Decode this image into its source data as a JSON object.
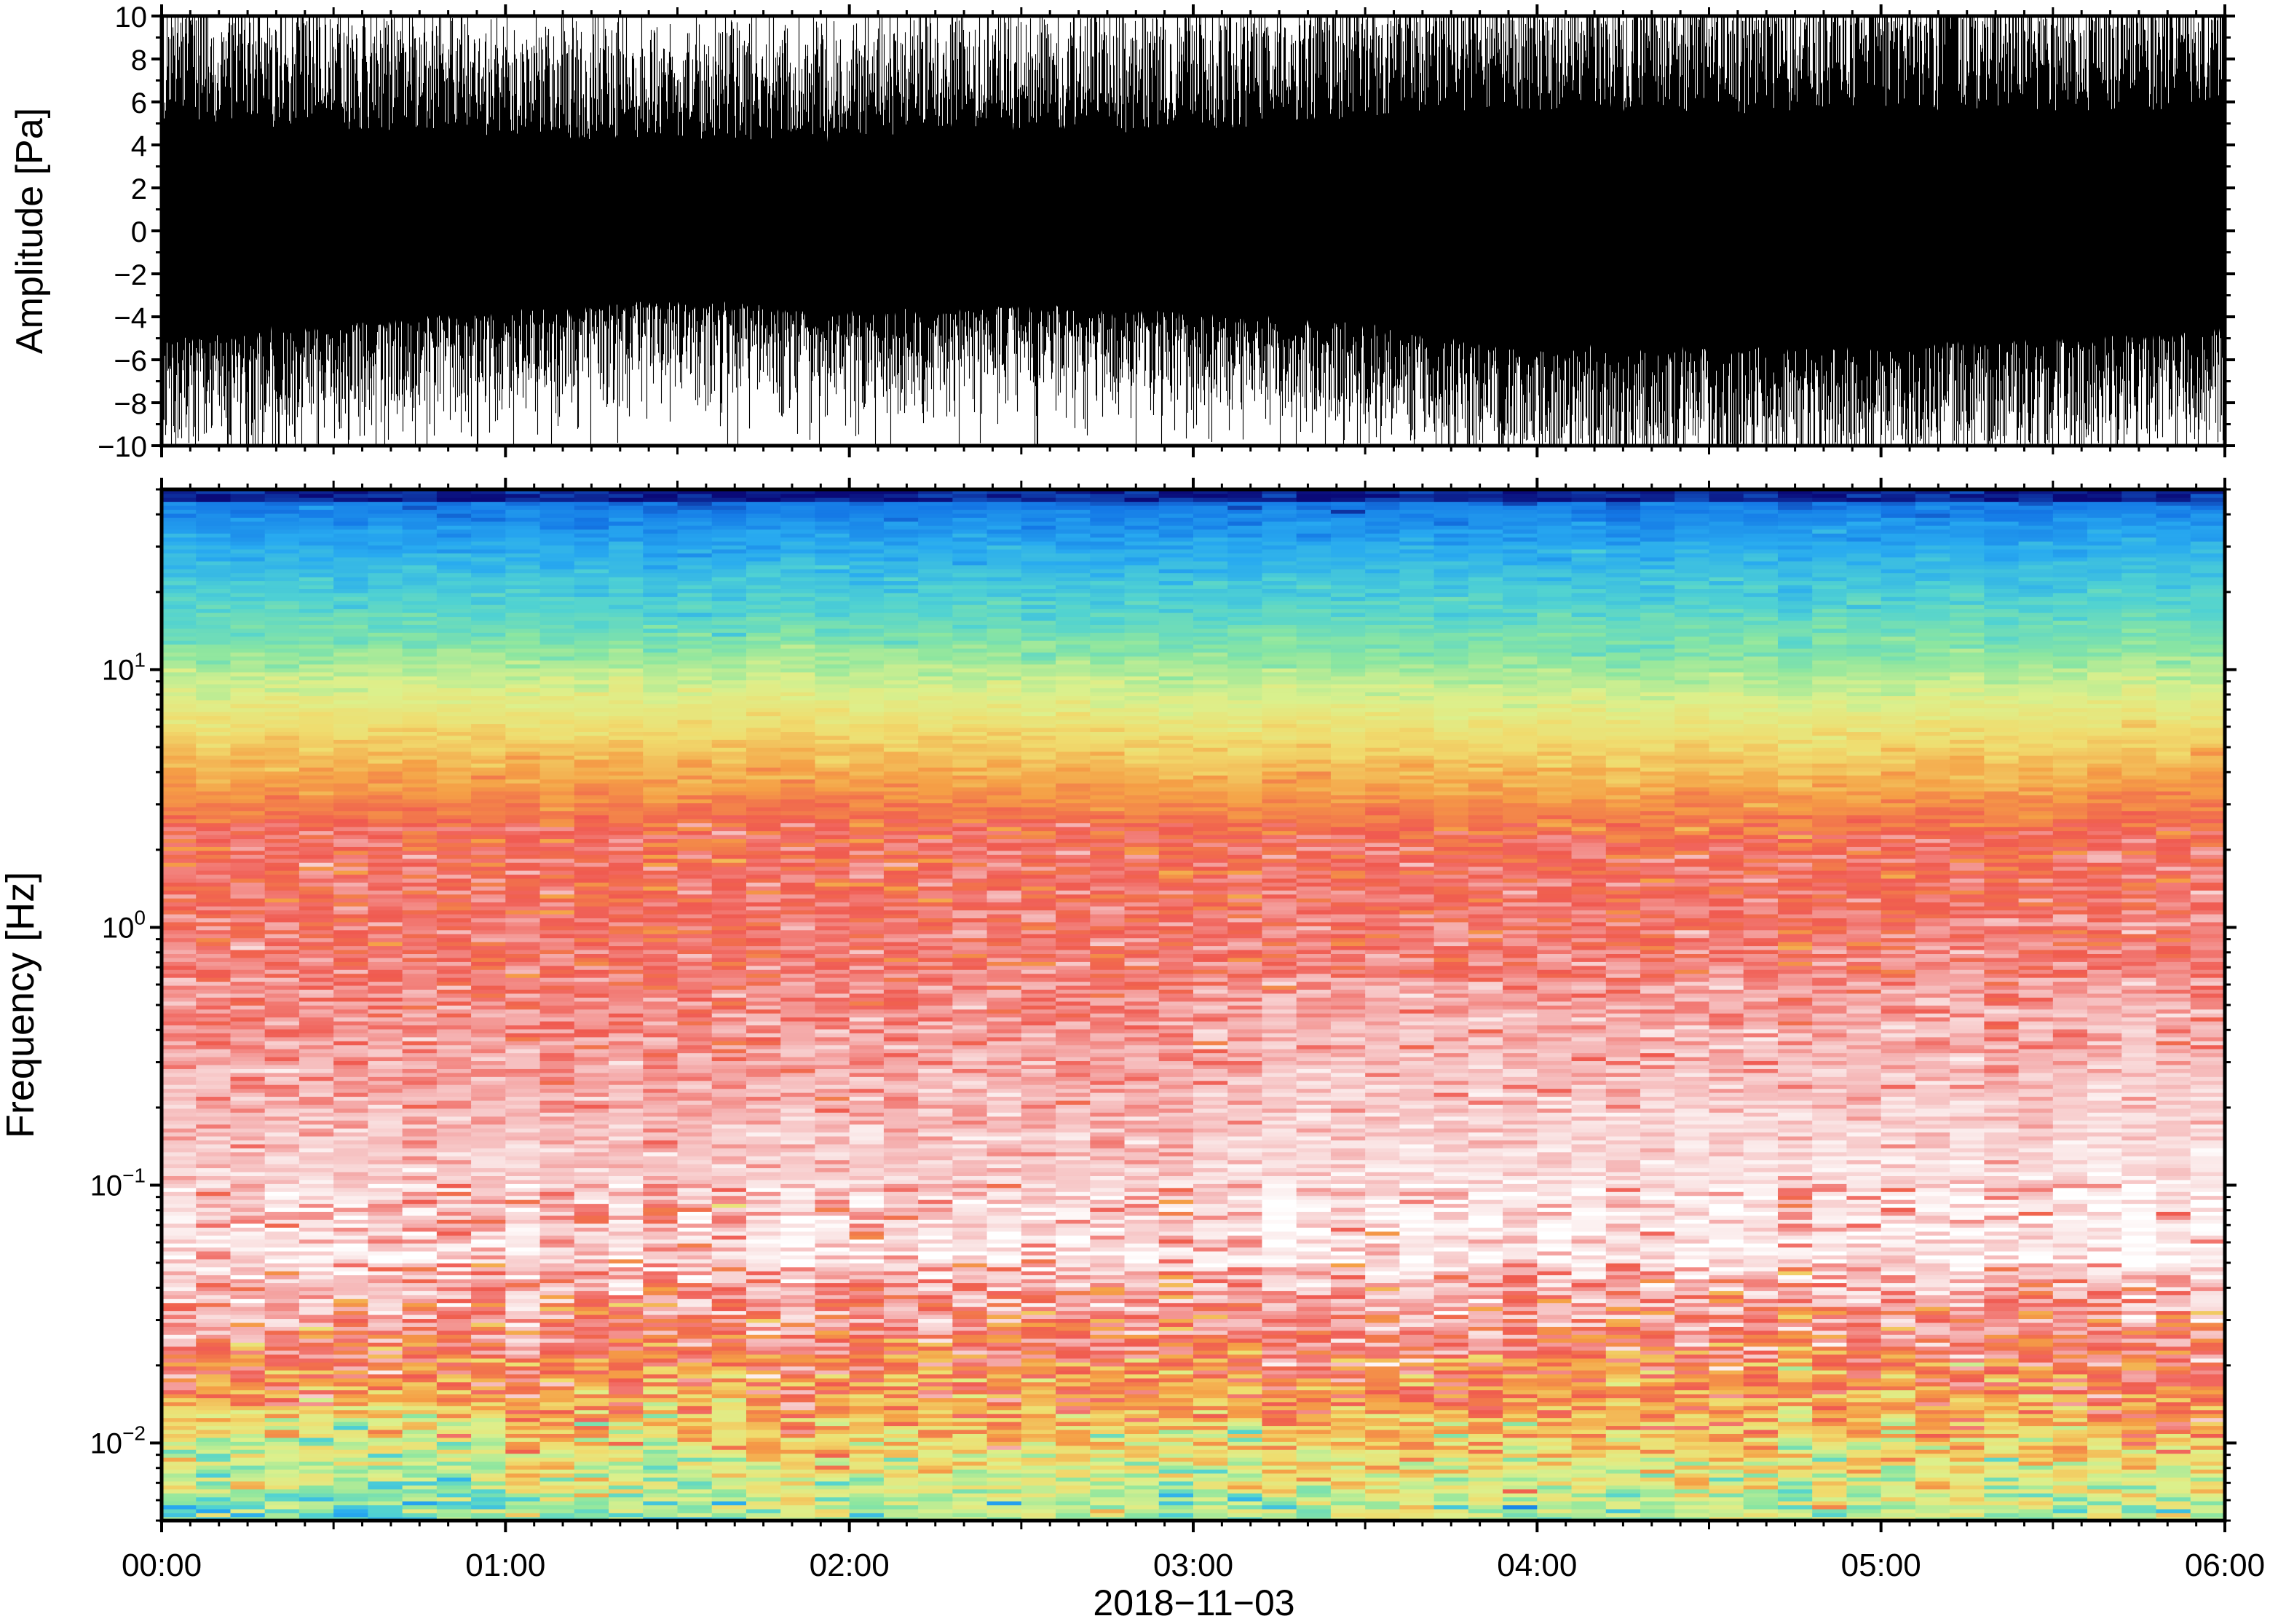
{
  "figure": {
    "date_label": "2018−11−03",
    "x_tick_labels": [
      "00:00",
      "01:00",
      "02:00",
      "03:00",
      "04:00",
      "05:00",
      "06:00"
    ]
  },
  "chart_data": [
    {
      "type": "line",
      "ylabel": "Amplitude [Pa]",
      "ylim": [
        -10,
        10
      ],
      "y_ticks": [
        10,
        8,
        6,
        4,
        2,
        0,
        -2,
        -4,
        -6,
        -8,
        -10
      ],
      "y_tick_labels": [
        "10",
        "8",
        "6",
        "4",
        "2",
        "0",
        "−2",
        "−4",
        "−6",
        "−8",
        "−10"
      ],
      "x_range_hours": [
        0,
        6
      ],
      "series": [
        {
          "values_hint": "dense waveform, saturating ±10 Pa; envelope by hour (upper/lower typical peak)",
          "envelope_x_hours": [
            0,
            0.5,
            1.0,
            1.5,
            2.0,
            2.5,
            3.0,
            3.5,
            4.0,
            4.5,
            5.0,
            5.5,
            6.0
          ],
          "envelope_upper": [
            9.5,
            8.5,
            8.0,
            7.5,
            8.0,
            8.5,
            8.5,
            9.5,
            10,
            10,
            10,
            10,
            10
          ],
          "envelope_lower": [
            -8.5,
            -7.5,
            -6.5,
            -5.5,
            -6.5,
            -6.0,
            -6.5,
            -7.5,
            -9.5,
            -9.5,
            -9.0,
            -8.5,
            -8.0
          ]
        }
      ]
    },
    {
      "type": "heatmap",
      "ylabel": "Frequency [Hz]",
      "y_scale": "log",
      "ylim": [
        0.005,
        50
      ],
      "y_tick_labels": [
        {
          "base": "10",
          "exp": "1",
          "value": 10
        },
        {
          "base": "10",
          "exp": "0",
          "value": 1
        },
        {
          "base": "10",
          "exp": "−1",
          "value": 0.1
        },
        {
          "base": "10",
          "exp": "−2",
          "value": 0.01
        }
      ],
      "x_range_hours": [
        0,
        6
      ],
      "colormap": [
        "#0a0a78",
        "#1478e6",
        "#28aaf0",
        "#50d2d2",
        "#8ce6a0",
        "#dcf08c",
        "#f0dc6e",
        "#f5a046",
        "#f05a50",
        "#f5b4b4",
        "#fae6e6",
        "#ffffff"
      ]
    }
  ]
}
